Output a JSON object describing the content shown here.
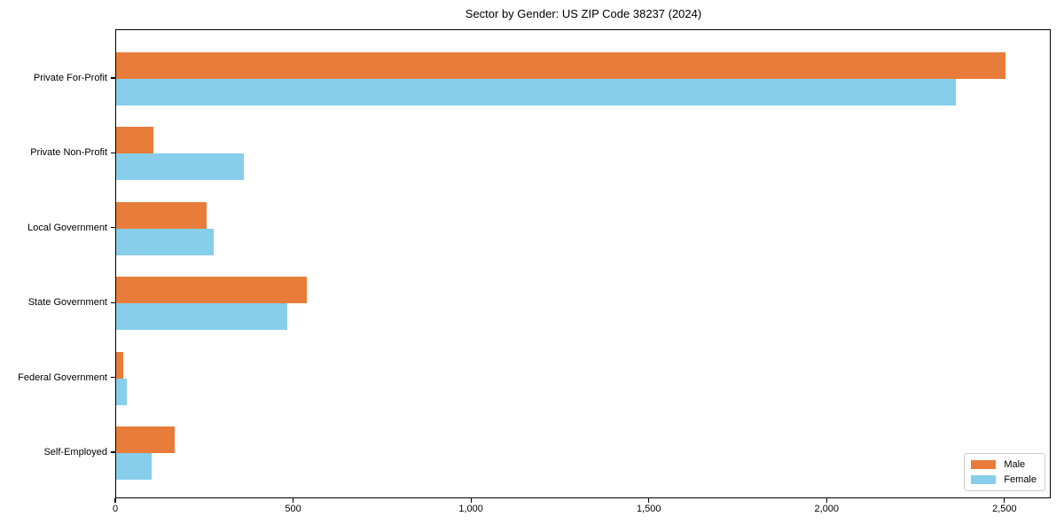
{
  "chart_data": {
    "type": "bar",
    "orientation": "horizontal",
    "title": "Sector by Gender: US ZIP Code 38237 (2024)",
    "categories": [
      "Private For-Profit",
      "Private Non-Profit",
      "Local Government",
      "State Government",
      "Federal Government",
      "Self-Employed"
    ],
    "series": [
      {
        "name": "Male",
        "color": "#E87C3A",
        "values": [
          2500,
          105,
          255,
          535,
          20,
          165
        ]
      },
      {
        "name": "Female",
        "color": "#87CEEB",
        "values": [
          2360,
          360,
          275,
          480,
          30,
          100
        ]
      }
    ],
    "xlim": [
      0,
      2630
    ],
    "xticks": [
      0,
      500,
      1000,
      1500,
      2000,
      2500
    ],
    "xtick_labels": [
      "0",
      "500",
      "1,000",
      "1,500",
      "2,000",
      "2,500"
    ],
    "xlabel": "",
    "ylabel": "",
    "grid": false,
    "legend_position": "lower right"
  }
}
